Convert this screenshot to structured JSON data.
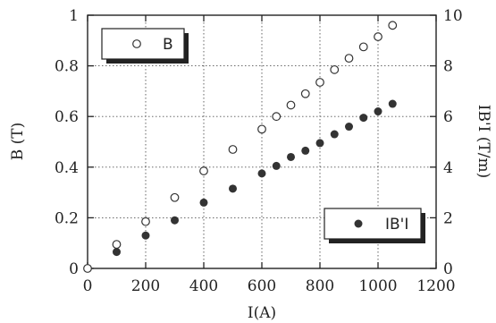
{
  "chart_data": {
    "type": "scatter",
    "xlabel": "I(A)",
    "ylabel": "B (T)",
    "y2label": "IB'I (T/m)",
    "xlim": [
      0,
      1200
    ],
    "ylim": [
      0,
      1
    ],
    "y2lim": [
      0,
      10
    ],
    "xticks": [
      "0",
      "200",
      "400",
      "600",
      "800",
      "1000",
      "1200"
    ],
    "yticks": [
      "0",
      "0.2",
      "0.4",
      "0.6",
      "0.8",
      "1"
    ],
    "y2ticks": [
      "0",
      "2",
      "4",
      "6",
      "8",
      "10"
    ],
    "grid": true,
    "series": [
      {
        "name": "B",
        "axis": "left",
        "marker": "open-circle",
        "x": [
          0,
          100,
          200,
          300,
          400,
          500,
          600,
          650,
          700,
          750,
          800,
          850,
          900,
          950,
          1000,
          1050
        ],
        "y": [
          0.0,
          0.095,
          0.185,
          0.28,
          0.385,
          0.47,
          0.55,
          0.6,
          0.645,
          0.69,
          0.735,
          0.785,
          0.83,
          0.875,
          0.915,
          0.96
        ]
      },
      {
        "name": "IB'I",
        "axis": "right",
        "marker": "filled-circle",
        "x": [
          100,
          200,
          300,
          400,
          500,
          600,
          650,
          700,
          750,
          800,
          850,
          900,
          950,
          1000,
          1050
        ],
        "y": [
          0.65,
          1.3,
          1.9,
          2.6,
          3.15,
          3.75,
          4.05,
          4.4,
          4.65,
          4.95,
          5.3,
          5.6,
          5.95,
          6.2,
          6.5
        ]
      }
    ],
    "legends": [
      {
        "marker": "open-circle",
        "label": "B"
      },
      {
        "marker": "filled-circle",
        "label": "IB'I"
      }
    ]
  }
}
